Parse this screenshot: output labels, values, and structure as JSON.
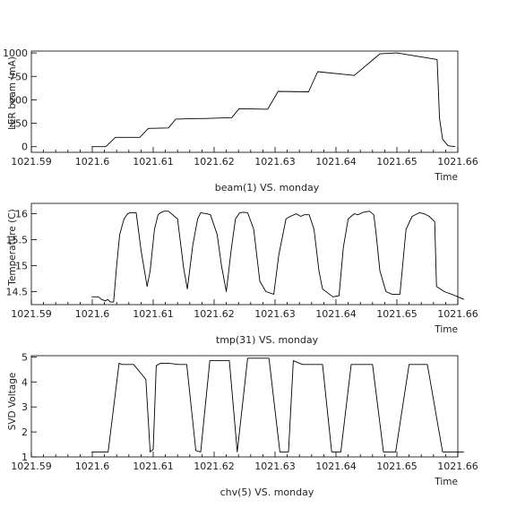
{
  "chart_data": [
    {
      "type": "line",
      "ylabel": "LER beam (mA)",
      "xlabel": "Time",
      "caption": "beam(1) VS. monday",
      "xlim": [
        1021.59,
        1021.66
      ],
      "ylim": [
        -60,
        1020
      ],
      "xticks": [
        1021.59,
        1021.6,
        1021.61,
        1021.62,
        1021.63,
        1021.64,
        1021.65,
        1021.66
      ],
      "xtick_labels": [
        "1021.59",
        "1021.6",
        "1021.61",
        "1021.62",
        "1021.63",
        "1021.64",
        "1021.65",
        "1021.66"
      ],
      "yticks": [
        0,
        250,
        500,
        750,
        1000
      ],
      "ytick_labels": [
        "0",
        "250",
        "500",
        "750",
        "1000"
      ],
      "grid": false,
      "series": [
        {
          "x": [
            1021.5999,
            1021.6022,
            1021.6038,
            1021.6078,
            1021.6092,
            1021.6125,
            1021.6137,
            1021.6172,
            1021.6182,
            1021.6229,
            1021.6241,
            1021.6288,
            1021.6305,
            1021.6355,
            1021.637,
            1021.643,
            1021.6472,
            1021.65,
            1021.65,
            1021.6566,
            1021.657,
            1021.6575,
            1021.6584,
            1021.6596
          ],
          "y": [
            0,
            0,
            100,
            100,
            195,
            200,
            295,
            300,
            300,
            310,
            405,
            400,
            590,
            585,
            800,
            760,
            990,
            1000,
            1000,
            930,
            300,
            80,
            10,
            0
          ]
        }
      ]
    },
    {
      "type": "line",
      "ylabel": "Temperature (C)",
      "xlabel": "Time",
      "caption": "tmp(31) VS. monday",
      "xlim": [
        1021.59,
        1021.66
      ],
      "ylim": [
        14.25,
        16.2
      ],
      "xticks": [
        1021.59,
        1021.6,
        1021.61,
        1021.62,
        1021.63,
        1021.64,
        1021.65,
        1021.66
      ],
      "xtick_labels": [
        "1021.59",
        "1021.6",
        "1021.61",
        "1021.62",
        "1021.63",
        "1021.64",
        "1021.65",
        "1021.66"
      ],
      "yticks": [
        14.5,
        15,
        15.5,
        16
      ],
      "ytick_labels": [
        "14.5",
        "15",
        "15.5",
        "16"
      ],
      "grid": false,
      "series": [
        {
          "x": [
            1021.5999,
            1021.601,
            1021.6015,
            1021.6022,
            1021.6025,
            1021.603,
            1021.6035,
            1021.604,
            1021.6045,
            1021.6052,
            1021.6058,
            1021.6062,
            1021.6072,
            1021.608,
            1021.609,
            1021.6095,
            1021.6102,
            1021.6108,
            1021.6112,
            1021.6118,
            1021.6125,
            1021.614,
            1021.615,
            1021.6156,
            1021.6165,
            1021.6173,
            1021.6178,
            1021.6188,
            1021.6194,
            1021.6205,
            1021.6212,
            1021.622,
            1021.6228,
            1021.6235,
            1021.6242,
            1021.6248,
            1021.6255,
            1021.6265,
            1021.6275,
            1021.6285,
            1021.6298,
            1021.6306,
            1021.6318,
            1021.6325,
            1021.6335,
            1021.6342,
            1021.6348,
            1021.6356,
            1021.6364,
            1021.6372,
            1021.6378,
            1021.6386,
            1021.6395,
            1021.6405,
            1021.6412,
            1021.642,
            1021.643,
            1021.6436,
            1021.6445,
            1021.6455,
            1021.6462,
            1021.6466,
            1021.6472,
            1021.6482,
            1021.6492,
            1021.6505,
            1021.6515,
            1021.6525,
            1021.6537,
            1021.6545,
            1021.6553,
            1021.6562,
            1021.6565,
            1021.6578,
            1021.659,
            1021.66,
            1021.661
          ],
          "y": [
            14.4,
            14.4,
            14.35,
            14.32,
            14.35,
            14.3,
            14.3,
            15,
            15.6,
            15.9,
            16.0,
            16.02,
            16.02,
            15.3,
            14.6,
            14.9,
            15.7,
            15.98,
            16.02,
            16.05,
            16.05,
            15.9,
            14.95,
            14.55,
            15.4,
            15.9,
            16.02,
            16.0,
            15.98,
            15.6,
            15.0,
            14.5,
            15.3,
            15.9,
            16.02,
            16.03,
            16.02,
            15.7,
            14.7,
            14.5,
            14.45,
            15.2,
            15.9,
            15.95,
            16.0,
            15.95,
            15.98,
            15.98,
            15.7,
            14.9,
            14.55,
            14.48,
            14.4,
            14.42,
            15.35,
            15.9,
            16.0,
            15.98,
            16.03,
            16.05,
            15.98,
            15.6,
            14.9,
            14.5,
            14.45,
            14.45,
            15.7,
            15.95,
            16.02,
            16.0,
            15.95,
            15.85,
            14.6,
            14.5,
            14.45,
            14.4,
            14.35
          ]
        }
      ]
    },
    {
      "type": "line",
      "ylabel": "SVD Voltage",
      "xlabel": "Time",
      "caption": "chv(5) VS. monday",
      "xlim": [
        1021.59,
        1021.66
      ],
      "ylim": [
        1,
        5.05
      ],
      "xticks": [
        1021.59,
        1021.6,
        1021.61,
        1021.62,
        1021.63,
        1021.64,
        1021.65,
        1021.66
      ],
      "xtick_labels": [
        "1021.59",
        "1021.6",
        "1021.61",
        "1021.62",
        "1021.63",
        "1021.64",
        "1021.65",
        "1021.66"
      ],
      "yticks": [
        1,
        2,
        3,
        4,
        5
      ],
      "ytick_labels": [
        "1",
        "2",
        "3",
        "4",
        "5"
      ],
      "grid": false,
      "series": [
        {
          "x": [
            1021.5999,
            1021.6026,
            1021.6044,
            1021.6049,
            1021.6068,
            1021.6088,
            1021.6095,
            1021.61,
            1021.6105,
            1021.6112,
            1021.6125,
            1021.6142,
            1021.6155,
            1021.617,
            1021.6178,
            1021.6193,
            1021.6205,
            1021.6215,
            1021.6225,
            1021.6238,
            1021.6255,
            1021.629,
            1021.6308,
            1021.6322,
            1021.633,
            1021.6345,
            1021.6363,
            1021.6378,
            1021.6393,
            1021.6408,
            1021.6425,
            1021.6445,
            1021.646,
            1021.6478,
            1021.6498,
            1021.652,
            1021.653,
            1021.655,
            1021.6575,
            1021.661
          ],
          "y": [
            1.2,
            1.2,
            4.75,
            4.7,
            4.7,
            4.1,
            1.2,
            1.3,
            4.65,
            4.75,
            4.75,
            4.7,
            4.7,
            1.25,
            1.2,
            4.85,
            4.85,
            4.85,
            4.85,
            1.2,
            4.95,
            4.95,
            1.2,
            1.2,
            4.85,
            4.7,
            4.7,
            4.7,
            1.2,
            1.2,
            4.7,
            4.7,
            4.7,
            1.2,
            1.2,
            4.7,
            4.7,
            4.7,
            1.2,
            1.2
          ]
        }
      ]
    }
  ]
}
